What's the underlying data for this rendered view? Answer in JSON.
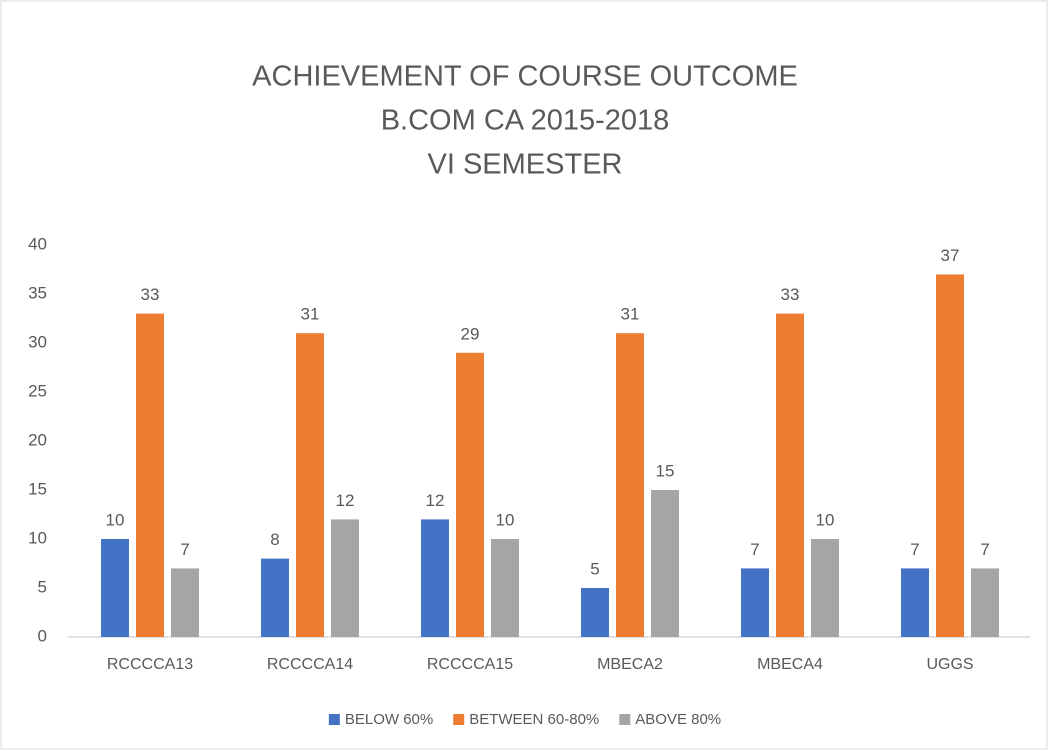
{
  "chart_data": {
    "type": "bar",
    "title": [
      "ACHIEVEMENT OF COURSE OUTCOME",
      "B.COM CA 2015-2018",
      "VI SEMESTER"
    ],
    "categories": [
      "RCCCCA13",
      "RCCCCA14",
      "RCCCCA15",
      "MBECA2",
      "MBECA4",
      "UGGS"
    ],
    "series": [
      {
        "name": "BELOW 60%",
        "color": "#4472c4",
        "values": [
          10,
          8,
          12,
          5,
          7,
          7
        ]
      },
      {
        "name": "BETWEEN 60-80%",
        "color": "#ed7d31",
        "values": [
          33,
          31,
          29,
          31,
          33,
          37
        ]
      },
      {
        "name": "ABOVE 80%",
        "color": "#a5a5a5",
        "values": [
          7,
          12,
          10,
          15,
          10,
          7
        ]
      }
    ],
    "ylim": [
      0,
      40
    ],
    "yticks": [
      0,
      5,
      10,
      15,
      20,
      25,
      30,
      35,
      40
    ],
    "grid": false,
    "legend": "bottom",
    "data_labels": true
  }
}
